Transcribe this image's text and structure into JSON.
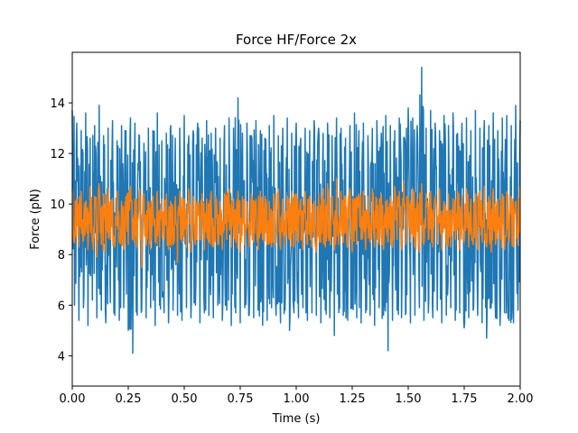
{
  "chart_data": {
    "type": "line",
    "title": "Force HF/Force 2x",
    "xlabel": "Time (s)",
    "ylabel": "Force (pN)",
    "xlim": [
      0.0,
      2.0
    ],
    "ylim": [
      2.8,
      16.0
    ],
    "x_ticks": [
      "0.00",
      "0.25",
      "0.50",
      "0.75",
      "1.00",
      "1.25",
      "1.50",
      "1.75",
      "2.00"
    ],
    "y_ticks": [
      "4",
      "6",
      "8",
      "10",
      "12",
      "14"
    ],
    "grid": false,
    "series": [
      {
        "color": "#1f77b4",
        "x": [
          0.0,
          0.02,
          0.04,
          0.06,
          0.08,
          0.1,
          0.12,
          0.14,
          0.16,
          0.18,
          0.2,
          0.22,
          0.24,
          0.26,
          0.28,
          0.3,
          0.32,
          0.34,
          0.36,
          0.38,
          0.4,
          0.42,
          0.44,
          0.46,
          0.48,
          0.5,
          0.52,
          0.54,
          0.56,
          0.58,
          0.6,
          0.62,
          0.64,
          0.66,
          0.68,
          0.7,
          0.72,
          0.74,
          0.76,
          0.78,
          0.8,
          0.82,
          0.84,
          0.86,
          0.88,
          0.9,
          0.92,
          0.94,
          0.96,
          0.98,
          1.0,
          1.02,
          1.04,
          1.06,
          1.08,
          1.1,
          1.12,
          1.14,
          1.16,
          1.18,
          1.2,
          1.22,
          1.24,
          1.26,
          1.28,
          1.3,
          1.32,
          1.34,
          1.36,
          1.38,
          1.4,
          1.42,
          1.44,
          1.46,
          1.48,
          1.5,
          1.52,
          1.54,
          1.56,
          1.58,
          1.6,
          1.62,
          1.64,
          1.66,
          1.68,
          1.7,
          1.72,
          1.74,
          1.76,
          1.78,
          1.8,
          1.82,
          1.84,
          1.86,
          1.88,
          1.9,
          1.92,
          1.94,
          1.96,
          1.98,
          2.0
        ],
        "high": [
          13.7,
          13.2,
          12.9,
          13.6,
          12.6,
          13.1,
          13.9,
          12.7,
          13.0,
          13.3,
          12.5,
          13.1,
          12.9,
          13.4,
          13.2,
          12.7,
          12.4,
          13.0,
          12.9,
          13.6,
          12.5,
          12.8,
          13.1,
          12.6,
          13.0,
          13.5,
          12.7,
          12.9,
          13.2,
          12.6,
          13.3,
          12.8,
          13.0,
          12.6,
          13.1,
          13.4,
          13.0,
          14.2,
          12.8,
          13.2,
          12.7,
          13.3,
          12.9,
          12.6,
          13.1,
          13.5,
          12.7,
          13.0,
          13.4,
          12.8,
          13.2,
          12.6,
          13.0,
          12.9,
          13.3,
          13.0,
          12.8,
          13.2,
          12.7,
          13.4,
          13.0,
          12.6,
          13.1,
          13.6,
          12.9,
          13.2,
          12.7,
          13.0,
          13.3,
          12.8,
          13.5,
          13.1,
          12.9,
          13.4,
          12.6,
          13.8,
          13.4,
          13.1,
          15.4,
          13.0,
          13.7,
          13.2,
          12.9,
          13.5,
          13.1,
          13.6,
          12.8,
          13.2,
          13.4,
          12.9,
          13.7,
          13.0,
          13.3,
          13.1,
          13.6,
          12.9,
          13.4,
          13.5,
          13.1,
          13.9,
          13.3
        ],
        "low": [
          6.0,
          5.4,
          5.9,
          5.2,
          6.2,
          5.5,
          5.8,
          5.3,
          6.1,
          5.6,
          5.4,
          5.9,
          5.0,
          4.1,
          5.6,
          5.8,
          5.5,
          5.9,
          5.2,
          6.0,
          5.7,
          5.3,
          5.8,
          5.6,
          5.4,
          5.9,
          5.5,
          6.0,
          5.3,
          5.7,
          5.6,
          5.5,
          6.0,
          5.4,
          5.8,
          5.2,
          5.7,
          5.3,
          5.9,
          5.6,
          5.5,
          5.8,
          5.2,
          5.4,
          5.9,
          5.6,
          5.3,
          5.8,
          5.0,
          5.7,
          5.5,
          5.9,
          5.4,
          5.7,
          5.6,
          5.3,
          5.8,
          5.5,
          4.8,
          5.7,
          5.6,
          5.4,
          5.9,
          5.5,
          5.3,
          5.7,
          5.6,
          5.2,
          5.9,
          5.6,
          4.2,
          5.4,
          5.8,
          5.5,
          5.7,
          5.3,
          5.6,
          5.9,
          5.4,
          5.7,
          5.5,
          5.8,
          5.3,
          5.6,
          5.9,
          5.4,
          5.7,
          5.1,
          5.5,
          5.8,
          5.6,
          5.3,
          4.7,
          5.9,
          5.5,
          5.2,
          5.7,
          5.4,
          5.3,
          5.8,
          6.2
        ]
      },
      {
        "color": "#ff7f0e",
        "x": [
          0.0,
          0.02,
          0.04,
          0.06,
          0.08,
          0.1,
          0.12,
          0.14,
          0.16,
          0.18,
          0.2,
          0.22,
          0.24,
          0.26,
          0.28,
          0.3,
          0.32,
          0.34,
          0.36,
          0.38,
          0.4,
          0.42,
          0.44,
          0.46,
          0.48,
          0.5,
          0.52,
          0.54,
          0.56,
          0.58,
          0.6,
          0.62,
          0.64,
          0.66,
          0.68,
          0.7,
          0.72,
          0.74,
          0.76,
          0.78,
          0.8,
          0.82,
          0.84,
          0.86,
          0.88,
          0.9,
          0.92,
          0.94,
          0.96,
          0.98,
          1.0,
          1.02,
          1.04,
          1.06,
          1.08,
          1.1,
          1.12,
          1.14,
          1.16,
          1.18,
          1.2,
          1.22,
          1.24,
          1.26,
          1.28,
          1.3,
          1.32,
          1.34,
          1.36,
          1.38,
          1.4,
          1.42,
          1.44,
          1.46,
          1.48,
          1.5,
          1.52,
          1.54,
          1.56,
          1.58,
          1.6,
          1.62,
          1.64,
          1.66,
          1.68,
          1.7,
          1.72,
          1.74,
          1.76,
          1.78,
          1.8,
          1.82,
          1.84,
          1.86,
          1.88,
          1.9,
          1.92,
          1.94,
          1.96,
          1.98,
          2.0
        ],
        "high": [
          10.6,
          10.2,
          10.5,
          10.1,
          10.7,
          10.3,
          10.8,
          10.4,
          10.6,
          10.2,
          10.5,
          10.1,
          10.3,
          10.7,
          10.2,
          10.6,
          10.4,
          10.1,
          10.3,
          10.5,
          10.2,
          10.4,
          10.1,
          10.3,
          10.5,
          10.2,
          10.6,
          10.3,
          10.1,
          10.4,
          10.2,
          10.5,
          10.3,
          10.1,
          10.4,
          10.6,
          10.2,
          10.5,
          10.3,
          10.1,
          10.4,
          10.2,
          10.5,
          10.3,
          10.1,
          10.4,
          10.6,
          10.2,
          10.3,
          10.5,
          10.4,
          10.2,
          10.5,
          10.3,
          10.1,
          10.4,
          10.6,
          10.8,
          10.3,
          11.0,
          10.5,
          10.3,
          10.6,
          10.2,
          10.4,
          10.5,
          10.3,
          10.6,
          10.2,
          10.4,
          10.1,
          10.3,
          10.7,
          10.5,
          10.9,
          10.3,
          10.6,
          10.2,
          10.8,
          10.4,
          10.5,
          10.3,
          10.6,
          10.1,
          10.4,
          10.2,
          10.5,
          10.3,
          10.6,
          10.2,
          10.4,
          10.5,
          10.7,
          10.3,
          10.6,
          10.2,
          10.4,
          10.5,
          10.3,
          10.1,
          10.7
        ],
        "low": [
          8.5,
          8.3,
          8.6,
          8.2,
          8.5,
          7.9,
          8.4,
          8.1,
          8.6,
          8.3,
          8.5,
          8.2,
          8.4,
          8.6,
          8.3,
          7.5,
          8.4,
          8.2,
          8.5,
          8.3,
          8.6,
          8.2,
          8.4,
          7.7,
          8.5,
          8.3,
          8.1,
          8.4,
          8.6,
          8.2,
          8.5,
          8.3,
          8.4,
          8.2,
          8.6,
          8.3,
          8.5,
          8.1,
          8.4,
          8.3,
          8.5,
          8.2,
          8.6,
          8.4,
          8.3,
          8.5,
          8.2,
          8.4,
          8.6,
          8.3,
          8.5,
          8.2,
          8.4,
          8.3,
          8.1,
          8.5,
          8.3,
          8.6,
          8.2,
          8.4,
          8.5,
          8.3,
          8.1,
          8.4,
          8.6,
          8.2,
          8.5,
          8.3,
          8.4,
          8.2,
          8.5,
          8.3,
          8.6,
          8.2,
          8.4,
          8.5,
          8.3,
          8.1,
          8.4,
          8.6,
          8.3,
          8.5,
          8.2,
          8.4,
          8.3,
          8.6,
          8.2,
          8.5,
          8.3,
          8.4,
          8.2,
          8.5,
          8.3,
          8.1,
          8.4,
          8.6,
          8.2,
          8.5,
          8.3,
          8.4,
          8.6
        ]
      }
    ]
  }
}
